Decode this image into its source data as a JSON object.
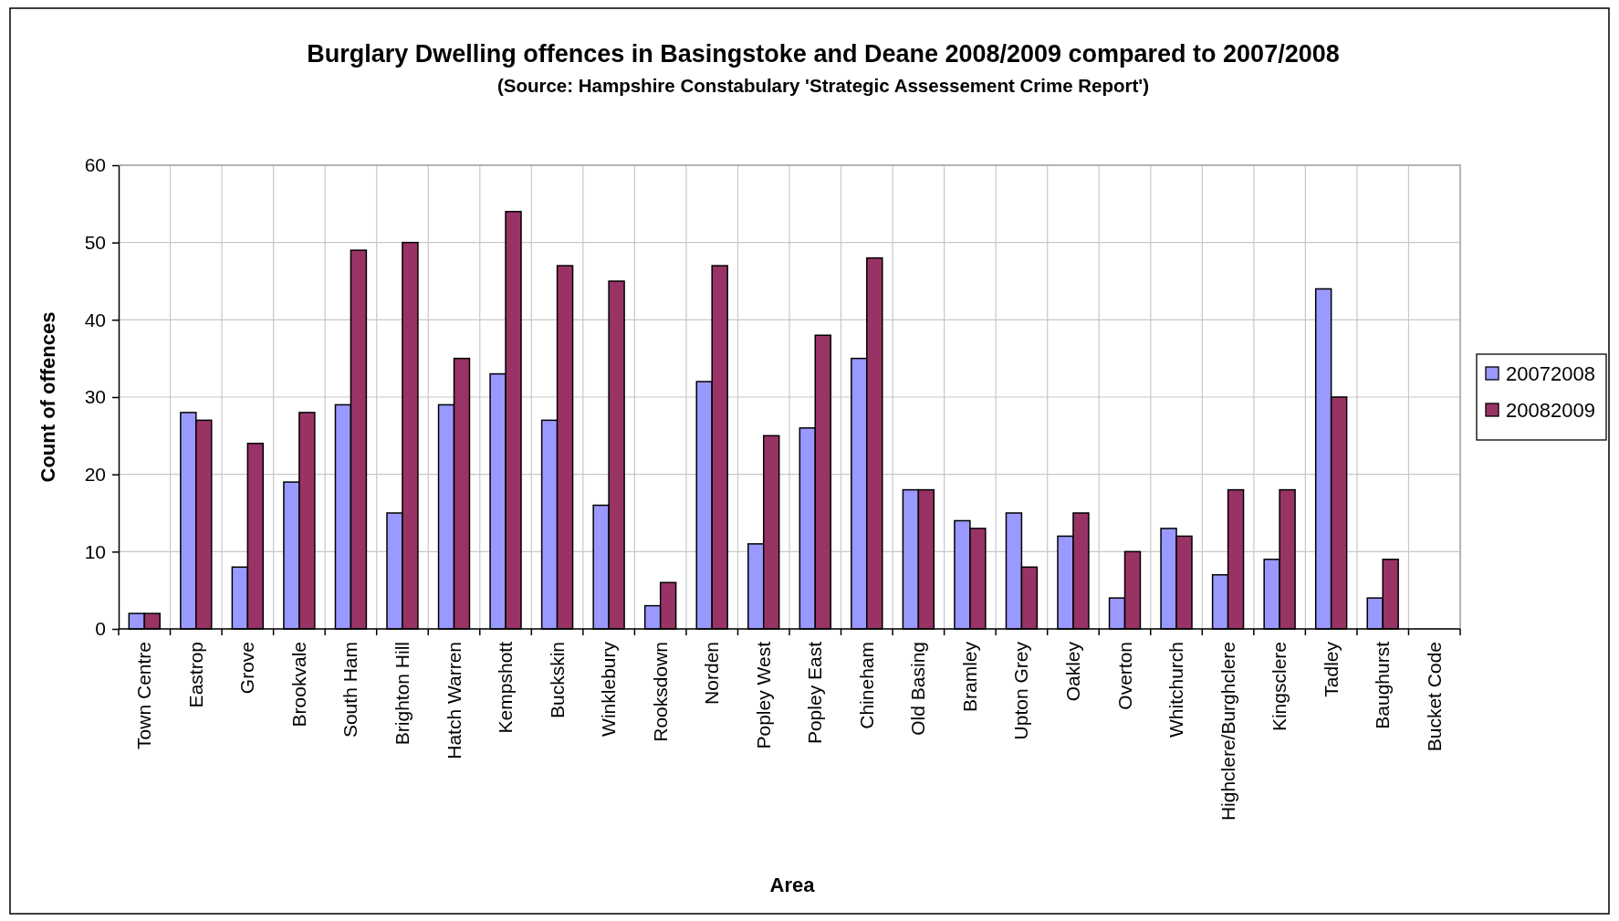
{
  "chart_data": {
    "type": "bar",
    "title": "Burglary Dwelling offences in Basingstoke and Deane 2008/2009 compared to 2007/2008",
    "subtitle": "(Source: Hampshire Constabulary 'Strategic Assessement Crime Report')",
    "xlabel": "Area",
    "ylabel": "Count of offences",
    "categories": [
      "Town Centre",
      "Eastrop",
      "Grove",
      "Brookvale",
      "South Ham",
      "Brighton Hill",
      "Hatch Warren",
      "Kempshott",
      "Buckskin",
      "Winklebury",
      "Rooksdown",
      "Norden",
      "Popley West",
      "Popley East",
      "Chineham",
      "Old Basing",
      "Bramley",
      "Upton Grey",
      "Oakley",
      "Overton",
      "Whitchurch",
      "Highclere/Burghclere",
      "Kingsclere",
      "Tadley",
      "Baughurst",
      "Bucket Code"
    ],
    "series": [
      {
        "name": "20072008",
        "color": "#9999ff",
        "values": [
          2,
          28,
          8,
          19,
          29,
          15,
          29,
          33,
          27,
          16,
          3,
          32,
          11,
          26,
          35,
          18,
          14,
          15,
          12,
          4,
          13,
          7,
          9,
          44,
          4,
          null
        ]
      },
      {
        "name": "20082009",
        "color": "#993366",
        "values": [
          2,
          27,
          24,
          28,
          49,
          50,
          35,
          54,
          47,
          45,
          6,
          47,
          25,
          38,
          48,
          18,
          13,
          8,
          15,
          10,
          12,
          18,
          18,
          30,
          9,
          null
        ]
      }
    ],
    "ylim": [
      0,
      60
    ],
    "yticks": [
      0,
      10,
      20,
      30,
      40,
      50,
      60
    ],
    "grid": true,
    "legend": "right"
  }
}
